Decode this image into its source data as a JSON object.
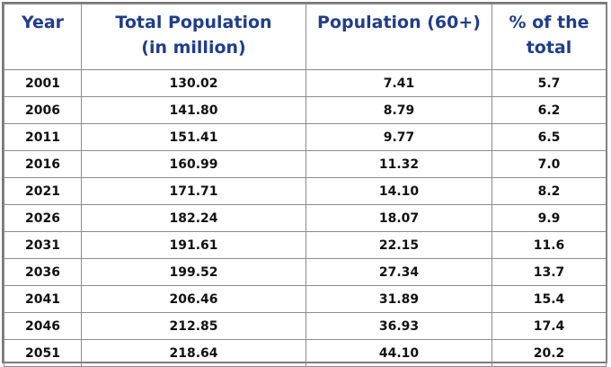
{
  "table": {
    "headers": {
      "year": "Year",
      "total_line1": "Total Population",
      "total_line2": "(in million)",
      "pop60": "Population (60+)",
      "pct_line1": "% of the",
      "pct_line2": "total"
    },
    "rows": [
      {
        "year": "2001",
        "total": "130.02",
        "pop60": "7.41",
        "pct": "5.7"
      },
      {
        "year": "2006",
        "total": "141.80",
        "pop60": "8.79",
        "pct": "6.2"
      },
      {
        "year": "2011",
        "total": "151.41",
        "pop60": "9.77",
        "pct": "6.5"
      },
      {
        "year": "2016",
        "total": "160.99",
        "pop60": "11.32",
        "pct": "7.0"
      },
      {
        "year": "2021",
        "total": "171.71",
        "pop60": "14.10",
        "pct": "8.2"
      },
      {
        "year": "2026",
        "total": "182.24",
        "pop60": "18.07",
        "pct": "9.9"
      },
      {
        "year": "2031",
        "total": "191.61",
        "pop60": "22.15",
        "pct": "11.6"
      },
      {
        "year": "2036",
        "total": "199.52",
        "pop60": "27.34",
        "pct": "13.7"
      },
      {
        "year": "2041",
        "total": "206.46",
        "pop60": "31.89",
        "pct": "15.4"
      },
      {
        "year": "2046",
        "total": "212.85",
        "pop60": "36.93",
        "pct": "17.4"
      },
      {
        "year": "2051",
        "total": "218.64",
        "pop60": "44.10",
        "pct": "20.2"
      }
    ]
  }
}
